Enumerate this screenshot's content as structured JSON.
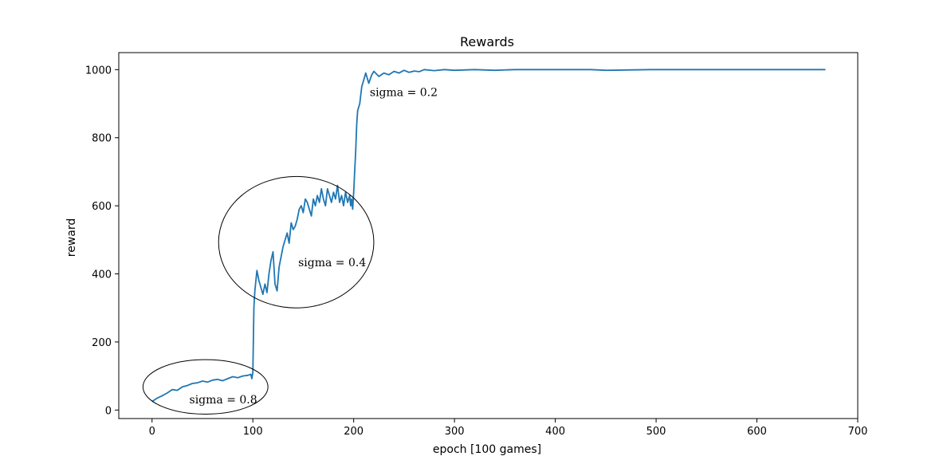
{
  "chart_data": {
    "type": "line",
    "title": "Rewards",
    "xlabel": "epoch [100 games]",
    "ylabel": "reward",
    "xlim": [
      -33,
      700
    ],
    "ylim": [
      -25,
      1050
    ],
    "xticks": [
      0,
      100,
      200,
      300,
      400,
      500,
      600,
      700
    ],
    "yticks": [
      0,
      200,
      400,
      600,
      800,
      1000
    ],
    "grid": false,
    "legend": "none",
    "line_color": "#1f77b4",
    "series": [
      {
        "x": [
          0,
          5,
          10,
          15,
          20,
          25,
          30,
          35,
          40,
          45,
          50,
          55,
          60,
          65,
          70,
          75,
          80,
          85,
          90,
          95,
          98,
          99,
          100,
          101,
          102,
          104,
          106,
          108,
          110,
          112,
          114,
          116,
          118,
          120,
          122,
          124,
          126,
          128,
          130,
          132,
          134,
          136,
          138,
          140,
          142,
          144,
          146,
          148,
          150,
          152,
          154,
          156,
          158,
          160,
          162,
          164,
          166,
          168,
          170,
          172,
          174,
          176,
          178,
          180,
          182,
          184,
          186,
          188,
          190,
          192,
          194,
          196,
          197,
          198,
          199,
          200,
          201,
          202,
          203,
          204,
          206,
          208,
          210,
          212,
          215,
          218,
          220,
          225,
          230,
          235,
          240,
          245,
          250,
          255,
          260,
          265,
          270,
          280,
          290,
          300,
          320,
          340,
          360,
          400,
          435,
          450,
          494,
          500,
          550,
          600,
          668
        ],
        "y": [
          25,
          35,
          42,
          50,
          60,
          58,
          68,
          72,
          78,
          80,
          85,
          82,
          88,
          90,
          86,
          92,
          98,
          95,
          100,
          102,
          105,
          92,
          110,
          300,
          350,
          410,
          380,
          360,
          340,
          370,
          345,
          400,
          440,
          465,
          370,
          350,
          420,
          450,
          480,
          500,
          520,
          490,
          550,
          530,
          540,
          560,
          590,
          600,
          580,
          620,
          610,
          590,
          570,
          620,
          600,
          630,
          610,
          650,
          620,
          600,
          650,
          630,
          610,
          640,
          620,
          660,
          610,
          630,
          600,
          640,
          610,
          630,
          600,
          620,
          590,
          640,
          700,
          760,
          840,
          880,
          900,
          950,
          970,
          990,
          960,
          985,
          995,
          980,
          990,
          985,
          995,
          990,
          998,
          992,
          996,
          994,
          1000,
          997,
          1000,
          998,
          1000,
          998,
          1000,
          1000,
          1000,
          998,
          1000,
          1000,
          1000,
          1000,
          1000
        ]
      }
    ],
    "annotations": [
      {
        "text": "sigma = 0.8",
        "x": 37,
        "y": 20
      },
      {
        "text": "sigma = 0.4",
        "x": 145,
        "y": 422
      },
      {
        "text": "sigma = 0.2",
        "x": 216,
        "y": 922
      }
    ],
    "ellipses": [
      {
        "cx": 53,
        "cy": 68,
        "rx": 62,
        "ry": 80
      },
      {
        "cx": 143,
        "cy": 493,
        "rx": 77,
        "ry": 193
      }
    ]
  }
}
